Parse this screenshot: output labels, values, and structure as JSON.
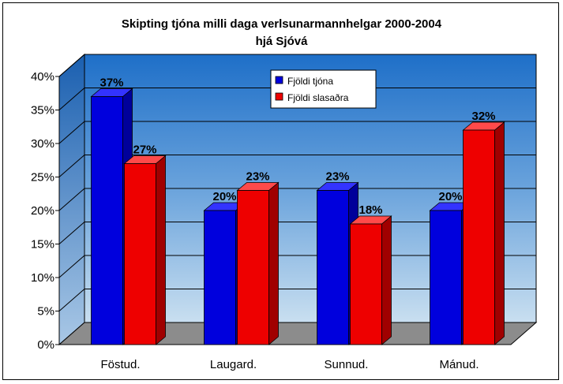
{
  "chart_data": {
    "type": "bar",
    "title_lines": [
      "Skipting tjóna milli daga verlsunarmannhelgar 2000-2004",
      "hjá Sjóvá"
    ],
    "categories": [
      "Föstud.",
      "Laugard.",
      "Sunnud.",
      "Mánud."
    ],
    "series": [
      {
        "name": "Fjöldi tjóna",
        "values": [
          37,
          20,
          23,
          20
        ],
        "labels": [
          "37%",
          "20%",
          "23%",
          "20%"
        ],
        "color": "#0000dd"
      },
      {
        "name": "Fjöldi slasaðra",
        "values": [
          27,
          23,
          18,
          32
        ],
        "labels": [
          "27%",
          "23%",
          "18%",
          "32%"
        ],
        "color": "#ee0000"
      }
    ],
    "ylim": [
      0,
      40
    ],
    "yticks": [
      "0%",
      "5%",
      "10%",
      "15%",
      "20%",
      "25%",
      "30%",
      "35%",
      "40%"
    ],
    "grid": true,
    "legend_position": "top-right",
    "xlabel": "",
    "ylabel": ""
  }
}
